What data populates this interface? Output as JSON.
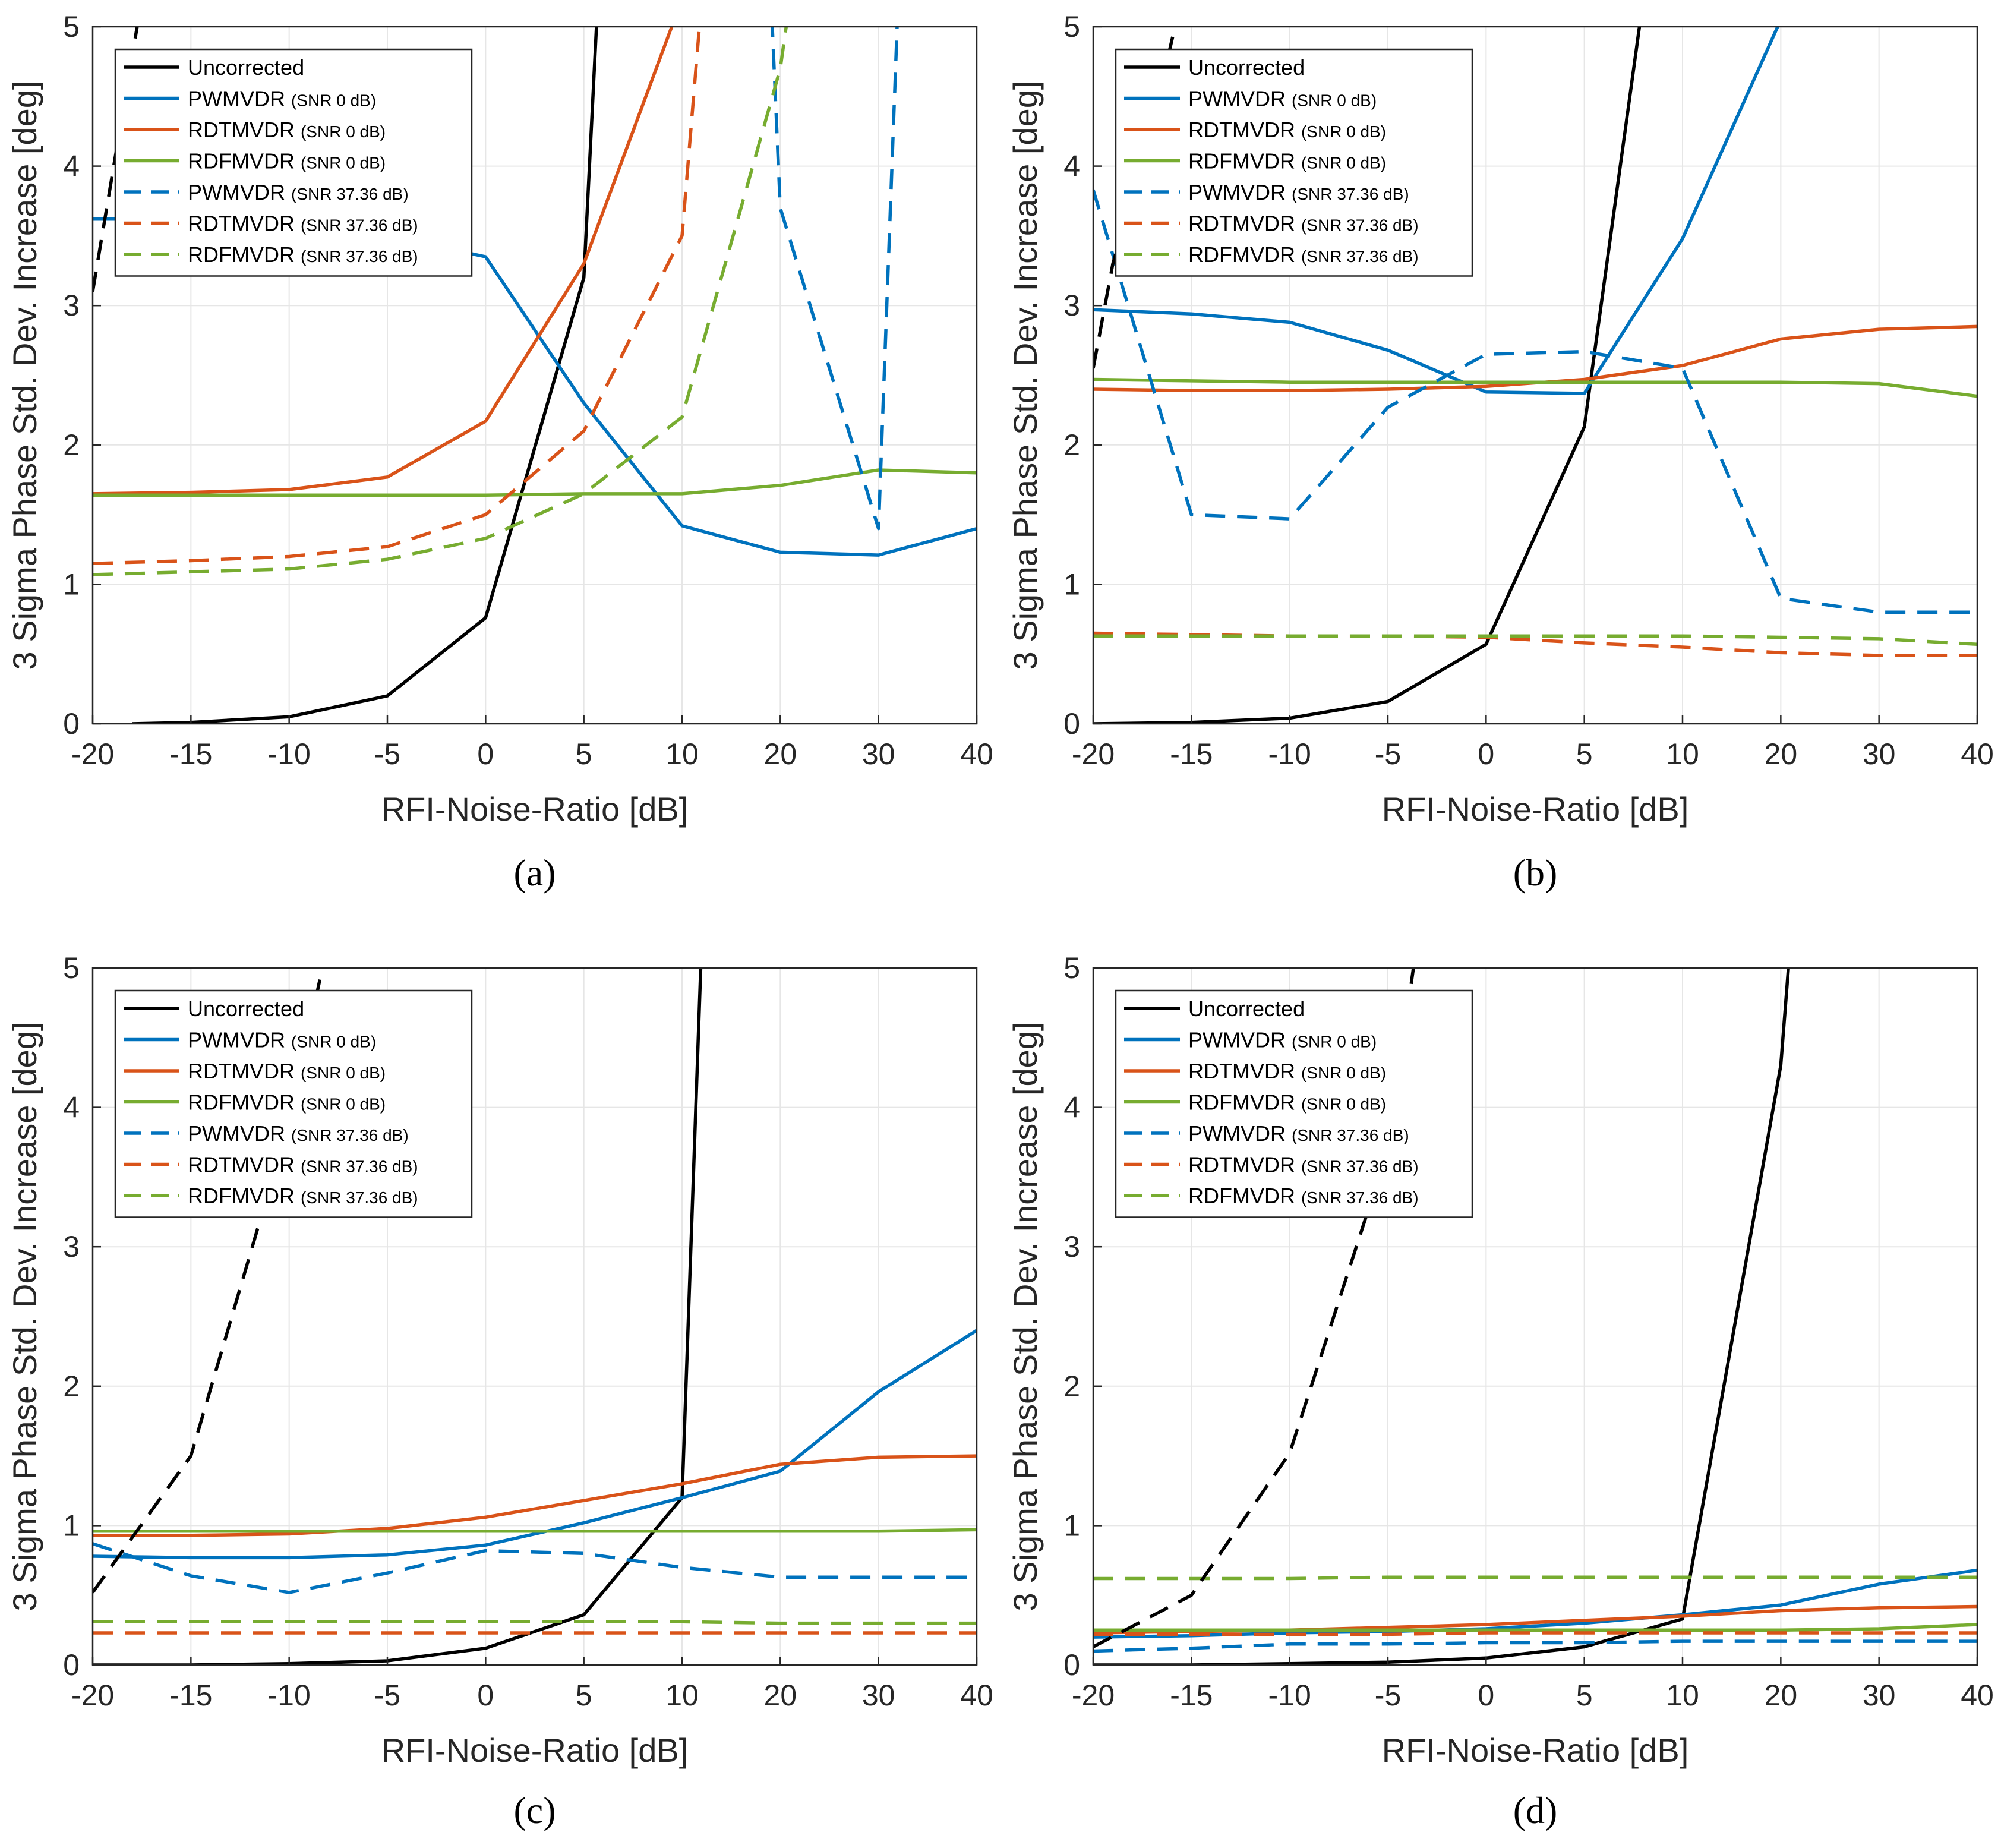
{
  "figure_captions": [
    "(a)",
    "(b)",
    "(c)",
    "(d)"
  ],
  "colors": {
    "Uncorrected": "#000000",
    "PWMVDR": "#0072bd",
    "RDTMVDR": "#d95319",
    "RDFMVDR": "#77ac30",
    "grid": "#e6e6e6",
    "axis": "#262626"
  },
  "chart_data": [
    {
      "type": "line",
      "panel": "a",
      "caption": "(a)",
      "xlabel": "RFI-Noise-Ratio [dB]",
      "ylabel": "3 Sigma Phase Std. Dev. Increase [deg]",
      "x_ticks": [
        "-20",
        "-15",
        "-10",
        "-5",
        "0",
        "5",
        "10",
        "20",
        "30",
        "40"
      ],
      "y_ticks": [
        "0",
        "1",
        "2",
        "3",
        "4",
        "5"
      ],
      "ylim": [
        0,
        5
      ],
      "grid": true,
      "legend_position": "top-left",
      "series": [
        {
          "name": "Uncorrected",
          "legend_suffix": "",
          "color_key": "Uncorrected",
          "dash": false,
          "x": [
            -18,
            -15,
            -10,
            -5,
            0,
            5,
            6
          ],
          "y": [
            0,
            0.01,
            0.05,
            0.2,
            0.76,
            3.2,
            6
          ]
        },
        {
          "name": "PWMVDR",
          "legend_suffix": "(SNR  0 dB)",
          "color_key": "PWMVDR",
          "dash": false,
          "x": [
            -20,
            -15,
            -10,
            -5,
            0,
            5,
            10,
            20,
            30,
            40
          ],
          "y": [
            3.62,
            3.62,
            3.6,
            3.5,
            3.35,
            2.3,
            1.42,
            1.23,
            1.21,
            1.4
          ]
        },
        {
          "name": "RDTMVDR",
          "legend_suffix": "(SNR  0 dB)",
          "color_key": "RDTMVDR",
          "dash": false,
          "x": [
            -20,
            -15,
            -10,
            -5,
            0,
            5,
            10
          ],
          "y": [
            1.65,
            1.66,
            1.68,
            1.77,
            2.17,
            3.3,
            5.2
          ]
        },
        {
          "name": "RDFMVDR",
          "legend_suffix": "(SNR  0 dB)",
          "color_key": "RDFMVDR",
          "dash": false,
          "x": [
            -20,
            -15,
            -10,
            -5,
            0,
            5,
            10,
            20,
            30,
            40
          ],
          "y": [
            1.64,
            1.64,
            1.64,
            1.64,
            1.64,
            1.65,
            1.65,
            1.71,
            1.82,
            1.8
          ]
        },
        {
          "name": "PWMVDR",
          "legend_suffix": "(SNR  37.36 dB)",
          "color_key": "PWMVDR",
          "dash": true,
          "x": [
            19,
            20,
            30,
            32
          ],
          "y": [
            5.3,
            3.7,
            1.4,
            5.2
          ]
        },
        {
          "name": "RDTMVDR",
          "legend_suffix": "(SNR  37.36 dB)",
          "color_key": "RDTMVDR",
          "dash": true,
          "x": [
            -20,
            -15,
            -10,
            -5,
            0,
            5,
            10,
            12
          ],
          "y": [
            1.15,
            1.17,
            1.2,
            1.27,
            1.5,
            2.1,
            3.5,
            5.2
          ]
        },
        {
          "name": "RDFMVDR",
          "legend_suffix": "(SNR  37.36 dB)",
          "color_key": "RDFMVDR",
          "dash": true,
          "x": [
            -20,
            -15,
            -10,
            -5,
            0,
            5,
            10,
            20,
            21
          ],
          "y": [
            1.07,
            1.09,
            1.11,
            1.18,
            1.33,
            1.65,
            2.2,
            4.7,
            5.2
          ]
        },
        {
          "name": "Uncorrected",
          "legend_suffix": "",
          "color_key": "Uncorrected",
          "dash": true,
          "legend": false,
          "x": [
            -20,
            -17.5
          ],
          "y": [
            3.1,
            5.2
          ]
        }
      ]
    },
    {
      "type": "line",
      "panel": "b",
      "caption": "(b)",
      "xlabel": "RFI-Noise-Ratio [dB]",
      "ylabel": "3 Sigma Phase Std. Dev. Increase [deg]",
      "x_ticks": [
        "-20",
        "-15",
        "-10",
        "-5",
        "0",
        "5",
        "10",
        "20",
        "30",
        "40"
      ],
      "y_ticks": [
        "0",
        "1",
        "2",
        "3",
        "4",
        "5"
      ],
      "ylim": [
        0,
        5
      ],
      "grid": true,
      "legend_position": "top-left",
      "series": [
        {
          "name": "Uncorrected",
          "legend_suffix": "",
          "color_key": "Uncorrected",
          "dash": false,
          "x": [
            -20,
            -15,
            -10,
            -5,
            0,
            5,
            8
          ],
          "y": [
            0,
            0.01,
            0.04,
            0.16,
            0.57,
            2.13,
            5.2
          ]
        },
        {
          "name": "PWMVDR",
          "legend_suffix": "(SNR 0 dB)",
          "color_key": "PWMVDR",
          "dash": false,
          "x": [
            -20,
            -15,
            -10,
            -5,
            0,
            5,
            10,
            20
          ],
          "y": [
            2.97,
            2.94,
            2.88,
            2.68,
            2.38,
            2.37,
            3.48,
            5.05
          ]
        },
        {
          "name": "RDTMVDR",
          "legend_suffix": "(SNR 0 dB)",
          "color_key": "RDTMVDR",
          "dash": false,
          "x": [
            -20,
            -15,
            -10,
            -5,
            0,
            5,
            10,
            20,
            30,
            40
          ],
          "y": [
            2.4,
            2.39,
            2.39,
            2.4,
            2.42,
            2.47,
            2.57,
            2.76,
            2.83,
            2.85
          ]
        },
        {
          "name": "RDFMVDR",
          "legend_suffix": "(SNR 0 dB)",
          "color_key": "RDFMVDR",
          "dash": false,
          "x": [
            -20,
            -15,
            -10,
            -5,
            0,
            5,
            10,
            20,
            30,
            40
          ],
          "y": [
            2.47,
            2.46,
            2.45,
            2.45,
            2.45,
            2.45,
            2.45,
            2.45,
            2.44,
            2.35
          ]
        },
        {
          "name": "PWMVDR",
          "legend_suffix": "(SNR 37.36 dB)",
          "color_key": "PWMVDR",
          "dash": true,
          "x": [
            -20,
            -15,
            -10,
            -5,
            0,
            5,
            10,
            20,
            30,
            40
          ],
          "y": [
            3.83,
            1.5,
            1.47,
            2.27,
            2.65,
            2.67,
            2.55,
            0.9,
            0.8,
            0.8
          ]
        },
        {
          "name": "RDTMVDR",
          "legend_suffix": "(SNR 37.36 dB)",
          "color_key": "RDTMVDR",
          "dash": true,
          "x": [
            -20,
            -15,
            -10,
            -5,
            0,
            5,
            10,
            20,
            30,
            40
          ],
          "y": [
            0.65,
            0.64,
            0.63,
            0.63,
            0.62,
            0.58,
            0.55,
            0.51,
            0.49,
            0.49
          ]
        },
        {
          "name": "RDFMVDR",
          "legend_suffix": "(SNR 37.36 dB)",
          "color_key": "RDFMVDR",
          "dash": true,
          "x": [
            -20,
            -15,
            -10,
            -5,
            0,
            5,
            10,
            20,
            30,
            40
          ],
          "y": [
            0.63,
            0.63,
            0.63,
            0.63,
            0.63,
            0.63,
            0.63,
            0.62,
            0.61,
            0.57
          ]
        },
        {
          "name": "Uncorrected",
          "legend_suffix": "",
          "color_key": "Uncorrected",
          "dash": true,
          "legend": false,
          "x": [
            -20,
            -19,
            -17,
            -15.5
          ],
          "y": [
            2.55,
            3.3,
            4.3,
            5.2
          ]
        }
      ]
    },
    {
      "type": "line",
      "panel": "c",
      "caption": "(c)",
      "xlabel": "RFI-Noise-Ratio [dB]",
      "ylabel": "3 Sigma Phase Std. Dev. Increase [deg]",
      "x_ticks": [
        "-20",
        "-15",
        "-10",
        "-5",
        "0",
        "5",
        "10",
        "20",
        "30",
        "40"
      ],
      "y_ticks": [
        "0",
        "1",
        "2",
        "3",
        "4",
        "5"
      ],
      "ylim": [
        0,
        5
      ],
      "grid": true,
      "legend_position": "top-left",
      "series": [
        {
          "name": "Uncorrected",
          "legend_suffix": "",
          "color_key": "Uncorrected",
          "dash": false,
          "x": [
            -20,
            -15,
            -10,
            -5,
            0,
            5,
            10,
            12
          ],
          "y": [
            0,
            0,
            0.01,
            0.03,
            0.12,
            0.36,
            1.2,
            5.2
          ]
        },
        {
          "name": "PWMVDR",
          "legend_suffix": "(SNR 0 dB)",
          "color_key": "PWMVDR",
          "dash": false,
          "x": [
            -20,
            -15,
            -10,
            -5,
            0,
            5,
            10,
            20,
            30,
            40
          ],
          "y": [
            0.78,
            0.77,
            0.77,
            0.79,
            0.86,
            1.02,
            1.2,
            1.39,
            1.96,
            2.4
          ]
        },
        {
          "name": "RDTMVDR",
          "legend_suffix": "(SNR 0 dB)",
          "color_key": "RDTMVDR",
          "dash": false,
          "x": [
            -20,
            -15,
            -10,
            -5,
            0,
            5,
            10,
            20,
            30,
            40
          ],
          "y": [
            0.93,
            0.93,
            0.94,
            0.98,
            1.06,
            1.18,
            1.3,
            1.44,
            1.49,
            1.5
          ]
        },
        {
          "name": "RDFMVDR",
          "legend_suffix": "(SNR 0 dB)",
          "color_key": "RDFMVDR",
          "dash": false,
          "x": [
            -20,
            -15,
            -10,
            -5,
            0,
            5,
            10,
            20,
            30,
            40
          ],
          "y": [
            0.96,
            0.96,
            0.96,
            0.96,
            0.96,
            0.96,
            0.96,
            0.96,
            0.96,
            0.97
          ]
        },
        {
          "name": "PWMVDR",
          "legend_suffix": "(SNR 37.36 dB)",
          "color_key": "PWMVDR",
          "dash": true,
          "x": [
            -20,
            -15,
            -10,
            -5,
            0,
            5,
            10,
            20,
            30,
            40
          ],
          "y": [
            0.87,
            0.64,
            0.52,
            0.66,
            0.82,
            0.8,
            0.7,
            0.63,
            0.63,
            0.63
          ]
        },
        {
          "name": "RDTMVDR",
          "legend_suffix": "(SNR 37.36 dB)",
          "color_key": "RDTMVDR",
          "dash": true,
          "x": [
            -20,
            -15,
            -10,
            -5,
            0,
            5,
            10,
            20,
            30,
            40
          ],
          "y": [
            0.23,
            0.23,
            0.23,
            0.23,
            0.23,
            0.23,
            0.23,
            0.23,
            0.23,
            0.23
          ]
        },
        {
          "name": "RDFMVDR",
          "legend_suffix": "(SNR 37.36 dB)",
          "color_key": "RDFMVDR",
          "dash": true,
          "x": [
            -20,
            -15,
            -10,
            -5,
            0,
            5,
            10,
            20,
            30,
            40
          ],
          "y": [
            0.31,
            0.31,
            0.31,
            0.31,
            0.31,
            0.31,
            0.31,
            0.3,
            0.3,
            0.3
          ]
        },
        {
          "name": "Uncorrected",
          "legend_suffix": "",
          "color_key": "Uncorrected",
          "dash": true,
          "legend": false,
          "x": [
            -20,
            -15,
            -10,
            -8
          ],
          "y": [
            0.52,
            1.5,
            3.9,
            5.2
          ]
        }
      ]
    },
    {
      "type": "line",
      "panel": "d",
      "caption": "(d)",
      "xlabel": "RFI-Noise-Ratio [dB]",
      "ylabel": "3 Sigma Phase Std. Dev. Increase [deg]",
      "x_ticks": [
        "-20",
        "-15",
        "-10",
        "-5",
        "0",
        "5",
        "10",
        "20",
        "30",
        "40"
      ],
      "y_ticks": [
        "0",
        "1",
        "2",
        "3",
        "4",
        "5"
      ],
      "ylim": [
        0,
        5
      ],
      "grid": true,
      "legend_position": "top-left",
      "series": [
        {
          "name": "Uncorrected",
          "legend_suffix": "",
          "color_key": "Uncorrected",
          "dash": false,
          "x": [
            -20,
            -15,
            -10,
            -5,
            0,
            5,
            10,
            20,
            21
          ],
          "y": [
            0,
            0,
            0.01,
            0.02,
            0.05,
            0.13,
            0.33,
            4.3,
            5.2
          ]
        },
        {
          "name": "PWMVDR",
          "legend_suffix": "(SNR 0 dB)",
          "color_key": "PWMVDR",
          "dash": false,
          "x": [
            -20,
            -15,
            -10,
            -5,
            0,
            5,
            10,
            20,
            30,
            40
          ],
          "y": [
            0.2,
            0.21,
            0.23,
            0.24,
            0.26,
            0.3,
            0.36,
            0.43,
            0.58,
            0.68
          ]
        },
        {
          "name": "RDTMVDR",
          "legend_suffix": "(SNR 0 dB)",
          "color_key": "RDTMVDR",
          "dash": false,
          "x": [
            -20,
            -15,
            -10,
            -5,
            0,
            5,
            10,
            20,
            30,
            40
          ],
          "y": [
            0.23,
            0.24,
            0.25,
            0.27,
            0.29,
            0.32,
            0.35,
            0.39,
            0.41,
            0.42
          ]
        },
        {
          "name": "RDFMVDR",
          "legend_suffix": "(SNR 0 dB)",
          "color_key": "RDFMVDR",
          "dash": false,
          "x": [
            -20,
            -15,
            -10,
            -5,
            0,
            5,
            10,
            20,
            30,
            40
          ],
          "y": [
            0.25,
            0.25,
            0.25,
            0.25,
            0.25,
            0.25,
            0.25,
            0.25,
            0.26,
            0.29
          ]
        },
        {
          "name": "PWMVDR",
          "legend_suffix": "(SNR 37.36 dB)",
          "color_key": "PWMVDR",
          "dash": true,
          "x": [
            -20,
            -15,
            -10,
            -5,
            0,
            5,
            10,
            20,
            30,
            40
          ],
          "y": [
            0.1,
            0.12,
            0.15,
            0.15,
            0.16,
            0.16,
            0.17,
            0.17,
            0.17,
            0.17
          ]
        },
        {
          "name": "RDTMVDR",
          "legend_suffix": "(SNR 37.36 dB)",
          "color_key": "RDTMVDR",
          "dash": true,
          "x": [
            -20,
            -15,
            -10,
            -5,
            0,
            5,
            10,
            20,
            30,
            40
          ],
          "y": [
            0.22,
            0.22,
            0.22,
            0.22,
            0.23,
            0.23,
            0.23,
            0.23,
            0.23,
            0.23
          ]
        },
        {
          "name": "RDFMVDR",
          "legend_suffix": "(SNR 37.36 dB)",
          "color_key": "RDFMVDR",
          "dash": true,
          "x": [
            -20,
            -15,
            -10,
            -5,
            0,
            5,
            10,
            20,
            30,
            40
          ],
          "y": [
            0.62,
            0.62,
            0.62,
            0.63,
            0.63,
            0.63,
            0.63,
            0.63,
            0.63,
            0.63
          ]
        },
        {
          "name": "Uncorrected",
          "legend_suffix": "",
          "color_key": "Uncorrected",
          "dash": true,
          "legend": false,
          "x": [
            -20,
            -15,
            -10,
            -5,
            -3.5
          ],
          "y": [
            0.13,
            0.5,
            1.52,
            3.7,
            5.2
          ]
        }
      ]
    }
  ]
}
